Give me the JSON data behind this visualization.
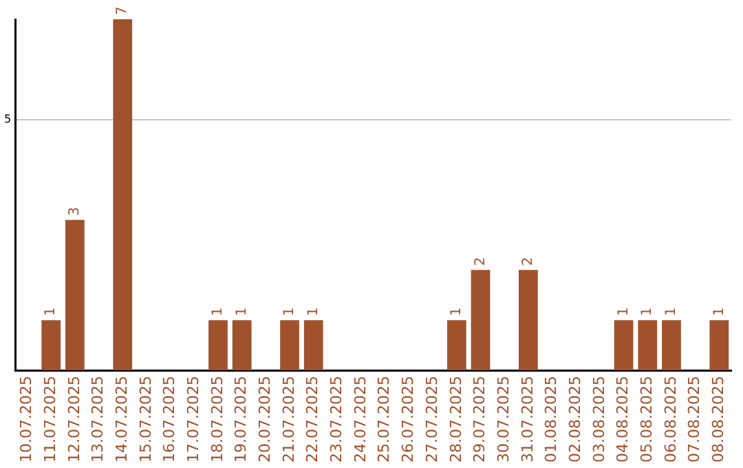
{
  "chart_data": {
    "type": "bar",
    "categories": [
      "10.07.2025",
      "11.07.2025",
      "12.07.2025",
      "13.07.2025",
      "14.07.2025",
      "15.07.2025",
      "16.07.2025",
      "17.07.2025",
      "18.07.2025",
      "19.07.2025",
      "20.07.2025",
      "21.07.2025",
      "22.07.2025",
      "23.07.2025",
      "24.07.2025",
      "25.07.2025",
      "26.07.2025",
      "27.07.2025",
      "28.07.2025",
      "29.07.2025",
      "30.07.2025",
      "31.07.2025",
      "01.08.2025",
      "02.08.2025",
      "03.08.2025",
      "04.08.2025",
      "05.08.2025",
      "06.08.2025",
      "07.08.2025",
      "08.08.2025"
    ],
    "values": [
      0,
      1,
      3,
      0,
      7,
      0,
      0,
      0,
      1,
      1,
      0,
      1,
      1,
      0,
      0,
      0,
      0,
      0,
      1,
      2,
      0,
      2,
      0,
      0,
      0,
      1,
      1,
      1,
      0,
      1
    ],
    "value_labels": [
      null,
      "1",
      "3",
      null,
      "7",
      null,
      null,
      null,
      "1",
      "1",
      null,
      "1",
      "1",
      null,
      null,
      null,
      null,
      null,
      "1",
      "2",
      null,
      "2",
      null,
      null,
      null,
      "1",
      "1",
      "1",
      null,
      "1"
    ],
    "color": "#a0522d",
    "ylim": [
      0,
      7
    ],
    "yticks": [
      5
    ],
    "grid": "y",
    "legend": false
  }
}
